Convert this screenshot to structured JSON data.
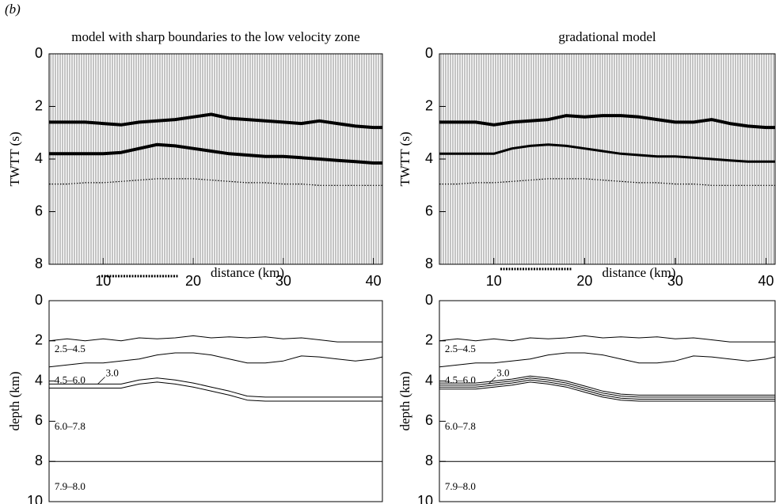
{
  "label": "(b)",
  "chart_data": [
    {
      "type": "seismic",
      "title": "model with sharp boundaries to the low velocity zone",
      "ylabel": "TWTT (s)",
      "xlabel": "distance (km)",
      "xlim": [
        4,
        41
      ],
      "xticks": [
        10,
        20,
        30,
        40
      ],
      "ylim": [
        0,
        8
      ],
      "yticks": [
        0,
        2,
        4,
        6,
        8
      ],
      "invert_y": true,
      "x": [
        4,
        6,
        8,
        10,
        12,
        14,
        16,
        18,
        20,
        22,
        24,
        26,
        28,
        30,
        32,
        34,
        36,
        38,
        40,
        41
      ],
      "series": [
        {
          "color": "#000000",
          "line_width": 4,
          "line_style": "solid",
          "values": [
            2.6,
            2.6,
            2.6,
            2.65,
            2.7,
            2.6,
            2.55,
            2.5,
            2.4,
            2.3,
            2.45,
            2.5,
            2.55,
            2.6,
            2.65,
            2.55,
            2.65,
            2.75,
            2.8,
            2.8
          ]
        },
        {
          "color": "#000000",
          "line_width": 4,
          "line_style": "solid",
          "values": [
            3.8,
            3.8,
            3.8,
            3.8,
            3.75,
            3.6,
            3.45,
            3.5,
            3.6,
            3.7,
            3.8,
            3.85,
            3.9,
            3.9,
            3.95,
            4.0,
            4.05,
            4.1,
            4.15,
            4.15
          ]
        },
        {
          "color": "#000000",
          "line_width": 1.2,
          "line_style": "dotted",
          "values": [
            4.95,
            4.95,
            4.9,
            4.9,
            4.85,
            4.8,
            4.75,
            4.75,
            4.75,
            4.8,
            4.85,
            4.9,
            4.9,
            4.95,
            4.95,
            5.0,
            5.0,
            5.0,
            5.0,
            5.0
          ]
        }
      ]
    },
    {
      "type": "line",
      "ylabel": "depth (km)",
      "xlim": [
        4,
        41
      ],
      "ylim": [
        0,
        10
      ],
      "yticks": [
        0,
        2,
        4,
        6,
        8,
        10
      ],
      "invert_y": true,
      "x": [
        4,
        6,
        8,
        10,
        12,
        14,
        16,
        18,
        20,
        22,
        24,
        26,
        28,
        30,
        32,
        34,
        36,
        38,
        40,
        41
      ],
      "series": [
        {
          "color": "#000000",
          "line_width": 1,
          "line_style": "solid",
          "values": [
            2.0,
            1.9,
            2.0,
            1.9,
            2.0,
            1.85,
            1.9,
            1.85,
            1.75,
            1.85,
            1.8,
            1.85,
            1.8,
            1.9,
            1.85,
            1.95,
            2.05,
            2.05,
            2.05,
            2.05
          ]
        },
        {
          "color": "#000000",
          "line_width": 1,
          "line_style": "solid",
          "values": [
            3.3,
            3.2,
            3.1,
            3.1,
            3.0,
            2.9,
            2.7,
            2.6,
            2.6,
            2.7,
            2.9,
            3.1,
            3.1,
            3.0,
            2.75,
            2.8,
            2.9,
            3.0,
            2.9,
            2.8
          ]
        },
        {
          "color": "#000000",
          "line_width": 1,
          "line_style": "solid",
          "values": [
            4.15,
            4.15,
            4.15,
            4.15,
            4.15,
            3.95,
            3.85,
            3.95,
            4.1,
            4.3,
            4.5,
            4.75,
            4.8,
            4.8,
            4.8,
            4.8,
            4.8,
            4.8,
            4.8,
            4.8
          ]
        },
        {
          "color": "#000000",
          "line_width": 1,
          "line_style": "solid",
          "values": [
            4.35,
            4.35,
            4.35,
            4.35,
            4.35,
            4.15,
            4.05,
            4.15,
            4.3,
            4.5,
            4.7,
            4.95,
            5.0,
            5.0,
            5.0,
            5.0,
            5.0,
            5.0,
            5.0,
            5.0
          ]
        },
        {
          "color": "#000000",
          "line_width": 1,
          "line_style": "solid",
          "values": [
            8,
            8,
            8,
            8,
            8,
            8,
            8,
            8,
            8,
            8,
            8,
            8,
            8,
            8,
            8,
            8,
            8,
            8,
            8,
            8
          ]
        }
      ],
      "annotations": [
        "2.5–4.5",
        "4.5–6.0",
        "3.0",
        "6.0–7.8",
        "7.9–8.0"
      ]
    },
    {
      "type": "seismic",
      "title": "gradational model",
      "ylabel": "TWTT (s)",
      "xlabel": "distance (km)",
      "xlim": [
        4,
        41
      ],
      "xticks": [
        10,
        20,
        30,
        40
      ],
      "ylim": [
        0,
        8
      ],
      "yticks": [
        0,
        2,
        4,
        6,
        8
      ],
      "invert_y": true,
      "x": [
        4,
        6,
        8,
        10,
        12,
        14,
        16,
        18,
        20,
        22,
        24,
        26,
        28,
        30,
        32,
        34,
        36,
        38,
        40,
        41
      ],
      "series": [
        {
          "color": "#000000",
          "line_width": 4,
          "line_style": "solid",
          "values": [
            2.6,
            2.6,
            2.6,
            2.7,
            2.6,
            2.55,
            2.5,
            2.35,
            2.4,
            2.35,
            2.35,
            2.4,
            2.5,
            2.6,
            2.6,
            2.5,
            2.65,
            2.75,
            2.8,
            2.8
          ]
        },
        {
          "color": "#000000",
          "line_width": 3,
          "line_style": "solid",
          "values": [
            3.8,
            3.8,
            3.8,
            3.8,
            3.6,
            3.5,
            3.45,
            3.5,
            3.6,
            3.7,
            3.8,
            3.85,
            3.9,
            3.9,
            3.95,
            4.0,
            4.05,
            4.1,
            4.1,
            4.1
          ]
        },
        {
          "color": "#000000",
          "line_width": 1.2,
          "line_style": "dotted",
          "values": [
            4.95,
            4.95,
            4.9,
            4.9,
            4.85,
            4.8,
            4.75,
            4.75,
            4.75,
            4.8,
            4.85,
            4.9,
            4.9,
            4.95,
            4.95,
            5.0,
            5.0,
            5.0,
            5.0,
            5.0
          ]
        }
      ]
    },
    {
      "type": "line",
      "ylabel": "depth (km)",
      "xlim": [
        4,
        41
      ],
      "ylim": [
        0,
        10
      ],
      "yticks": [
        0,
        2,
        4,
        6,
        8,
        10
      ],
      "invert_y": true,
      "x": [
        4,
        6,
        8,
        10,
        12,
        14,
        16,
        18,
        20,
        22,
        24,
        26,
        28,
        30,
        32,
        34,
        36,
        38,
        40,
        41
      ],
      "series": [
        {
          "color": "#000000",
          "line_width": 1,
          "line_style": "solid",
          "values": [
            2.0,
            1.9,
            2.0,
            1.9,
            2.0,
            1.85,
            1.9,
            1.85,
            1.75,
            1.85,
            1.8,
            1.85,
            1.8,
            1.9,
            1.85,
            1.95,
            2.05,
            2.05,
            2.05,
            2.05
          ]
        },
        {
          "color": "#000000",
          "line_width": 1,
          "line_style": "solid",
          "values": [
            3.3,
            3.2,
            3.1,
            3.1,
            3.0,
            2.9,
            2.7,
            2.6,
            2.6,
            2.7,
            2.9,
            3.1,
            3.1,
            3.0,
            2.75,
            2.8,
            2.9,
            3.0,
            2.9,
            2.8
          ]
        },
        {
          "color": "#000000",
          "line_width": 1,
          "line_style": "solid",
          "values": [
            4.1,
            4.1,
            4.1,
            4.0,
            3.9,
            3.75,
            3.85,
            4.0,
            4.25,
            4.5,
            4.65,
            4.7,
            4.7,
            4.7,
            4.7,
            4.7,
            4.7,
            4.7,
            4.7,
            4.7
          ]
        },
        {
          "color": "#000000",
          "line_width": 1,
          "line_style": "solid",
          "values": [
            4.2,
            4.2,
            4.2,
            4.1,
            4.0,
            3.85,
            3.95,
            4.1,
            4.35,
            4.6,
            4.75,
            4.8,
            4.8,
            4.8,
            4.8,
            4.8,
            4.8,
            4.8,
            4.8,
            4.8
          ]
        },
        {
          "color": "#000000",
          "line_width": 1,
          "line_style": "solid",
          "values": [
            4.3,
            4.3,
            4.3,
            4.2,
            4.1,
            3.95,
            4.05,
            4.2,
            4.45,
            4.7,
            4.85,
            4.9,
            4.9,
            4.9,
            4.9,
            4.9,
            4.9,
            4.9,
            4.9,
            4.9
          ]
        },
        {
          "color": "#000000",
          "line_width": 1,
          "line_style": "solid",
          "values": [
            4.4,
            4.4,
            4.4,
            4.3,
            4.2,
            4.05,
            4.15,
            4.3,
            4.55,
            4.8,
            4.95,
            5.0,
            5.0,
            5.0,
            5.0,
            5.0,
            5.0,
            5.0,
            5.0,
            5.0
          ]
        },
        {
          "color": "#000000",
          "line_width": 1,
          "line_style": "solid",
          "values": [
            8,
            8,
            8,
            8,
            8,
            8,
            8,
            8,
            8,
            8,
            8,
            8,
            8,
            8,
            8,
            8,
            8,
            8,
            8,
            8
          ]
        }
      ],
      "annotations": [
        "2.5–4.5",
        "4.5–6.0",
        "3.0",
        "6.0–7.8",
        "7.9–8.0"
      ]
    }
  ]
}
